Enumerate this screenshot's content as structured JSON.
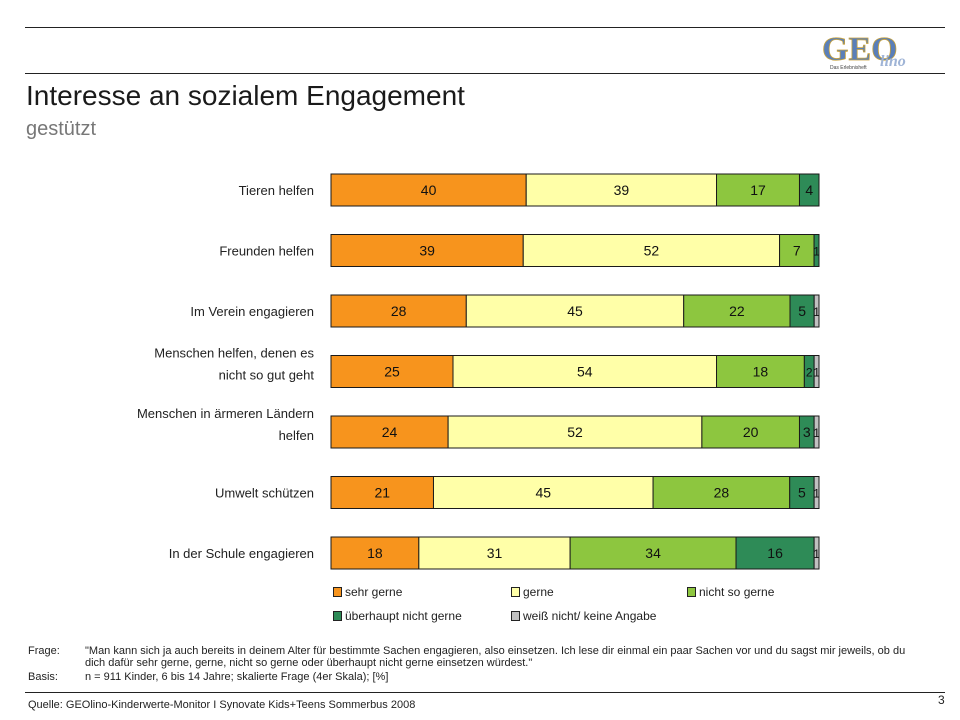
{
  "header": {
    "title": "Interesse an sozialem Engagement",
    "subtitle": "gestützt"
  },
  "logo": {
    "main": "GEO",
    "script": "lino",
    "tagline": "Das Erlebnisheft"
  },
  "colors": {
    "sehr_gerne": "#F7941D",
    "gerne": "#FFFFA8",
    "nicht_so_gerne": "#8DC63F",
    "ueberhaupt_nicht_gerne": "#2E8B57",
    "weiss_nicht": "#C0C0C0"
  },
  "chart_data": {
    "type": "bar",
    "orientation": "horizontal",
    "stacked": true,
    "unit": "%",
    "categories": [
      "Tieren helfen",
      "Freunden helfen",
      "Im Verein engagieren",
      "Menschen helfen, denen es nicht so gut geht",
      "Menschen in ärmeren Ländern helfen",
      "Umwelt schützen",
      "In der Schule engagieren"
    ],
    "series": [
      {
        "name": "sehr gerne",
        "color": "#F7941D",
        "values": [
          40,
          39,
          28,
          25,
          24,
          21,
          18
        ]
      },
      {
        "name": "gerne",
        "color": "#FFFFA8",
        "values": [
          39,
          52,
          45,
          54,
          52,
          45,
          31
        ]
      },
      {
        "name": "nicht so gerne",
        "color": "#8DC63F",
        "values": [
          17,
          7,
          22,
          18,
          20,
          28,
          34
        ]
      },
      {
        "name": "überhaupt nicht gerne",
        "color": "#2E8B57",
        "values": [
          4,
          1,
          5,
          2,
          3,
          5,
          16
        ]
      },
      {
        "name": "weiß nicht/ keine Angabe",
        "color": "#C0C0C0",
        "values": [
          0,
          0,
          1,
          1,
          1,
          1,
          1
        ]
      }
    ],
    "legend_position": "bottom",
    "grid": false
  },
  "notes": {
    "frage_label": "Frage:",
    "frage_text": "\"Man kann sich ja auch bereits in deinem Alter für bestimmte Sachen engagieren, also einsetzen. Ich lese dir einmal ein paar Sachen vor und du sagst mir jeweils, ob du dich dafür sehr gerne, gerne, nicht so gerne oder überhaupt nicht gerne einsetzen würdest.\"",
    "basis_label": "Basis:",
    "basis_text": "n = 911 Kinder, 6 bis 14 Jahre; skalierte Frage (4er Skala); [%]"
  },
  "footer": {
    "source": "Quelle: GEOlino-Kinderwerte-Monitor I Synovate Kids+Teens Sommerbus 2008",
    "page": "3"
  }
}
